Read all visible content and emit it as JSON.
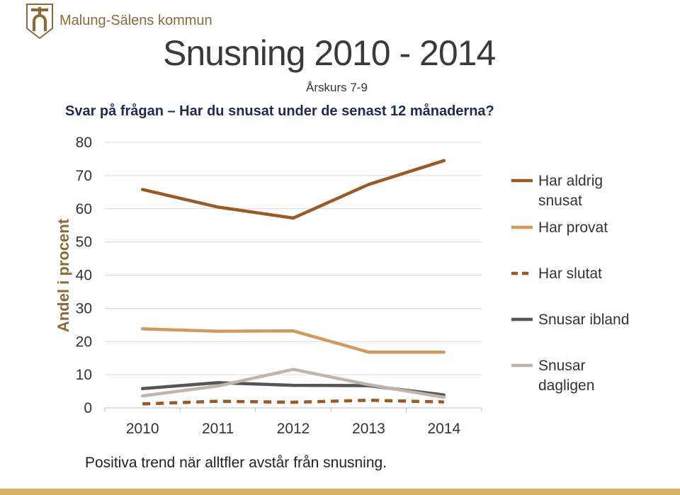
{
  "header": {
    "org_name": "Malung-Sälens kommun",
    "title": "Snusning 2010 - 2014",
    "subtitle": "Årskurs 7-9",
    "question": "Svar på frågan – Har du snusat under de senast 12 månaderna?"
  },
  "footer": {
    "note": "Positiva trend när alltfler avstår från snusning."
  },
  "colors": {
    "logo": "#8a6a3a",
    "bottom_bar": "#d9b36a"
  },
  "chart_data": {
    "type": "line",
    "x": [
      "2010",
      "2011",
      "2012",
      "2013",
      "2014"
    ],
    "ylabel": "Andel i procent",
    "xlabel": "",
    "ylim": [
      0,
      80
    ],
    "yticks": [
      0,
      10,
      20,
      30,
      40,
      50,
      60,
      70,
      80
    ],
    "grid": true,
    "legend_position": "right",
    "series": [
      {
        "name": "Har aldrig snusat",
        "legend_lines": [
          "Har aldrig",
          "snusat"
        ],
        "values": [
          65.8,
          60.5,
          57.2,
          67.3,
          74.5
        ],
        "color": "#9a5a25",
        "dashed": false
      },
      {
        "name": "Har provat",
        "legend_lines": [
          "Har provat"
        ],
        "values": [
          23.8,
          23.1,
          23.2,
          16.8,
          16.8
        ],
        "color": "#d09a5c",
        "dashed": false
      },
      {
        "name": "Har slutat",
        "legend_lines": [
          "Har slutat"
        ],
        "values": [
          1.2,
          2.0,
          1.7,
          2.3,
          1.8
        ],
        "color": "#9a5a25",
        "dashed": true
      },
      {
        "name": "Snusar ibland",
        "legend_lines": [
          "Snusar ibland"
        ],
        "values": [
          5.8,
          7.6,
          6.8,
          6.7,
          3.9
        ],
        "color": "#555555",
        "dashed": false
      },
      {
        "name": "Snusar dagligen",
        "legend_lines": [
          "Snusar",
          "dagligen"
        ],
        "values": [
          3.6,
          6.6,
          11.6,
          7.0,
          3.2
        ],
        "color": "#c4b4a6",
        "dashed": false
      }
    ]
  }
}
